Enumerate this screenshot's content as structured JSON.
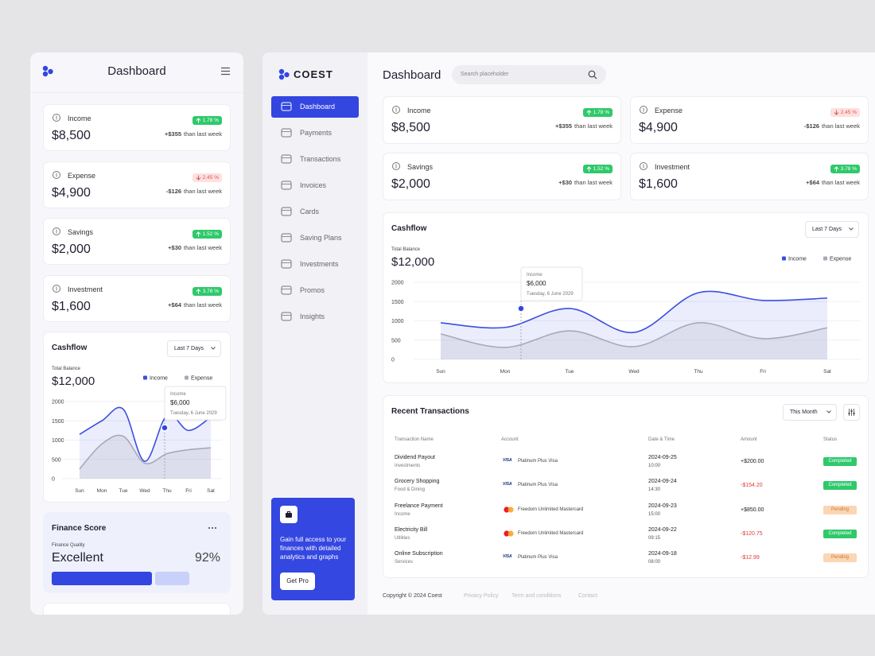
{
  "mobile": {
    "title": "Dashboard"
  },
  "brand": "COEST",
  "nav": [
    "Dashboard",
    "Payments",
    "Transactions",
    "Invoices",
    "Cards",
    "Saving Plans",
    "Investments",
    "Promos",
    "Insights"
  ],
  "promo": {
    "text": "Gain full access to your finances with detailed analytics and graphs",
    "button": "Get Pro"
  },
  "header": {
    "title": "Dashboard",
    "search": "Search placeholder"
  },
  "stats": [
    {
      "label": "Income",
      "value": "$8,500",
      "change": "1.78 %",
      "trend": "up",
      "delta": "+$355",
      "period": "than last week"
    },
    {
      "label": "Expense",
      "value": "$4,900",
      "change": "2.45 %",
      "trend": "down",
      "delta": "-$126",
      "period": "than last week"
    },
    {
      "label": "Savings",
      "value": "$2,000",
      "change": "1.52 %",
      "trend": "up",
      "delta": "+$30",
      "period": "than last week"
    },
    {
      "label": "Investment",
      "value": "$1,600",
      "change": "3.78 %",
      "trend": "up",
      "delta": "+$64",
      "period": "than last week"
    }
  ],
  "cashflow": {
    "type": "line",
    "title": "Cashflow",
    "range": "Last 7 Days",
    "balance_label": "Total Balance",
    "balance": "$12,000",
    "tooltip": {
      "label": "Income",
      "value": "$6,000",
      "date": "Tuesday, 6 June 2029"
    },
    "categories": [
      "Sun",
      "Mon",
      "Tue",
      "Wed",
      "Thu",
      "Fri",
      "Sat"
    ],
    "ylim": [
      0,
      2000
    ],
    "yticks": [
      0,
      500,
      1000,
      1500,
      2000
    ],
    "grid": true,
    "series": [
      {
        "name": "Income",
        "color": "#3a4fe0",
        "values": [
          950,
          830,
          1320,
          700,
          1730,
          1530,
          1590
        ]
      },
      {
        "name": "Expense",
        "color": "#a7a9b9",
        "values": [
          660,
          310,
          740,
          330,
          950,
          540,
          820
        ]
      }
    ]
  },
  "mobile_cashflow": {
    "type": "line",
    "title": "Cashflow",
    "range": "Last 7 Days",
    "balance_label": "Total Balance",
    "balance": "$12,000",
    "tooltip": {
      "label": "Income",
      "value": "$6,000",
      "date": "Tuesday, 6 June 2029"
    },
    "categories": [
      "Sun",
      "Mon",
      "Tue",
      "Wed",
      "Thu",
      "Fri",
      "Sat"
    ],
    "ylim": [
      0,
      2000
    ],
    "yticks": [
      0,
      500,
      1000,
      1500,
      2000
    ],
    "grid": true,
    "series": [
      {
        "name": "Income",
        "color": "#3a4fe0",
        "values": [
          1150,
          1500,
          1800,
          450,
          1650,
          1250,
          1600
        ]
      },
      {
        "name": "Expense",
        "color": "#a7a9b9",
        "values": [
          250,
          900,
          1100,
          400,
          650,
          750,
          800
        ]
      }
    ]
  },
  "finance": {
    "title": "Finance Score",
    "quality_label": "Finance Quality",
    "quality": "Excellent",
    "score": "92%"
  },
  "transactions": {
    "title": "Recent Transactions",
    "range": "This Month",
    "columns": [
      "Transaction Name",
      "Account",
      "Date & Time",
      "Amount",
      "Status"
    ],
    "rows": [
      {
        "name": "Dividend Payout",
        "category": "Investments",
        "card_brand": "VISA",
        "account": "Platinum Plus Visa",
        "date": "2024-09-25",
        "time": "10:00",
        "amount": "+$200.00",
        "status": "Completed"
      },
      {
        "name": "Grocery Shopping",
        "category": "Food & Dining",
        "card_brand": "VISA",
        "account": "Platinum Plus Visa",
        "date": "2024-09-24",
        "time": "14:30",
        "amount": "-$154.20",
        "status": "Completed"
      },
      {
        "name": "Freelance Payment",
        "category": "Income",
        "account": "Freedom Unlimited Mastercard",
        "date": "2024-09-23",
        "time": "15:00",
        "amount": "+$850.00",
        "status": "Pending"
      },
      {
        "name": "Electricity Bill",
        "category": "Utilities",
        "account": "Freedom Unlimited Mastercard",
        "date": "2024-09-22",
        "time": "09:15",
        "amount": "-$120.75",
        "status": "Completed"
      },
      {
        "name": "Online Subscription",
        "category": "Services",
        "card_brand": "VISA",
        "account": "Platinum Plus Visa",
        "date": "2024-09-18",
        "time": "08:00",
        "amount": "-$12.99",
        "status": "Pending"
      }
    ]
  },
  "footer": {
    "copyright": "Copyright © 2024 Coest",
    "links": [
      "Privacy Policy",
      "Term and conditions",
      "Contact"
    ]
  }
}
